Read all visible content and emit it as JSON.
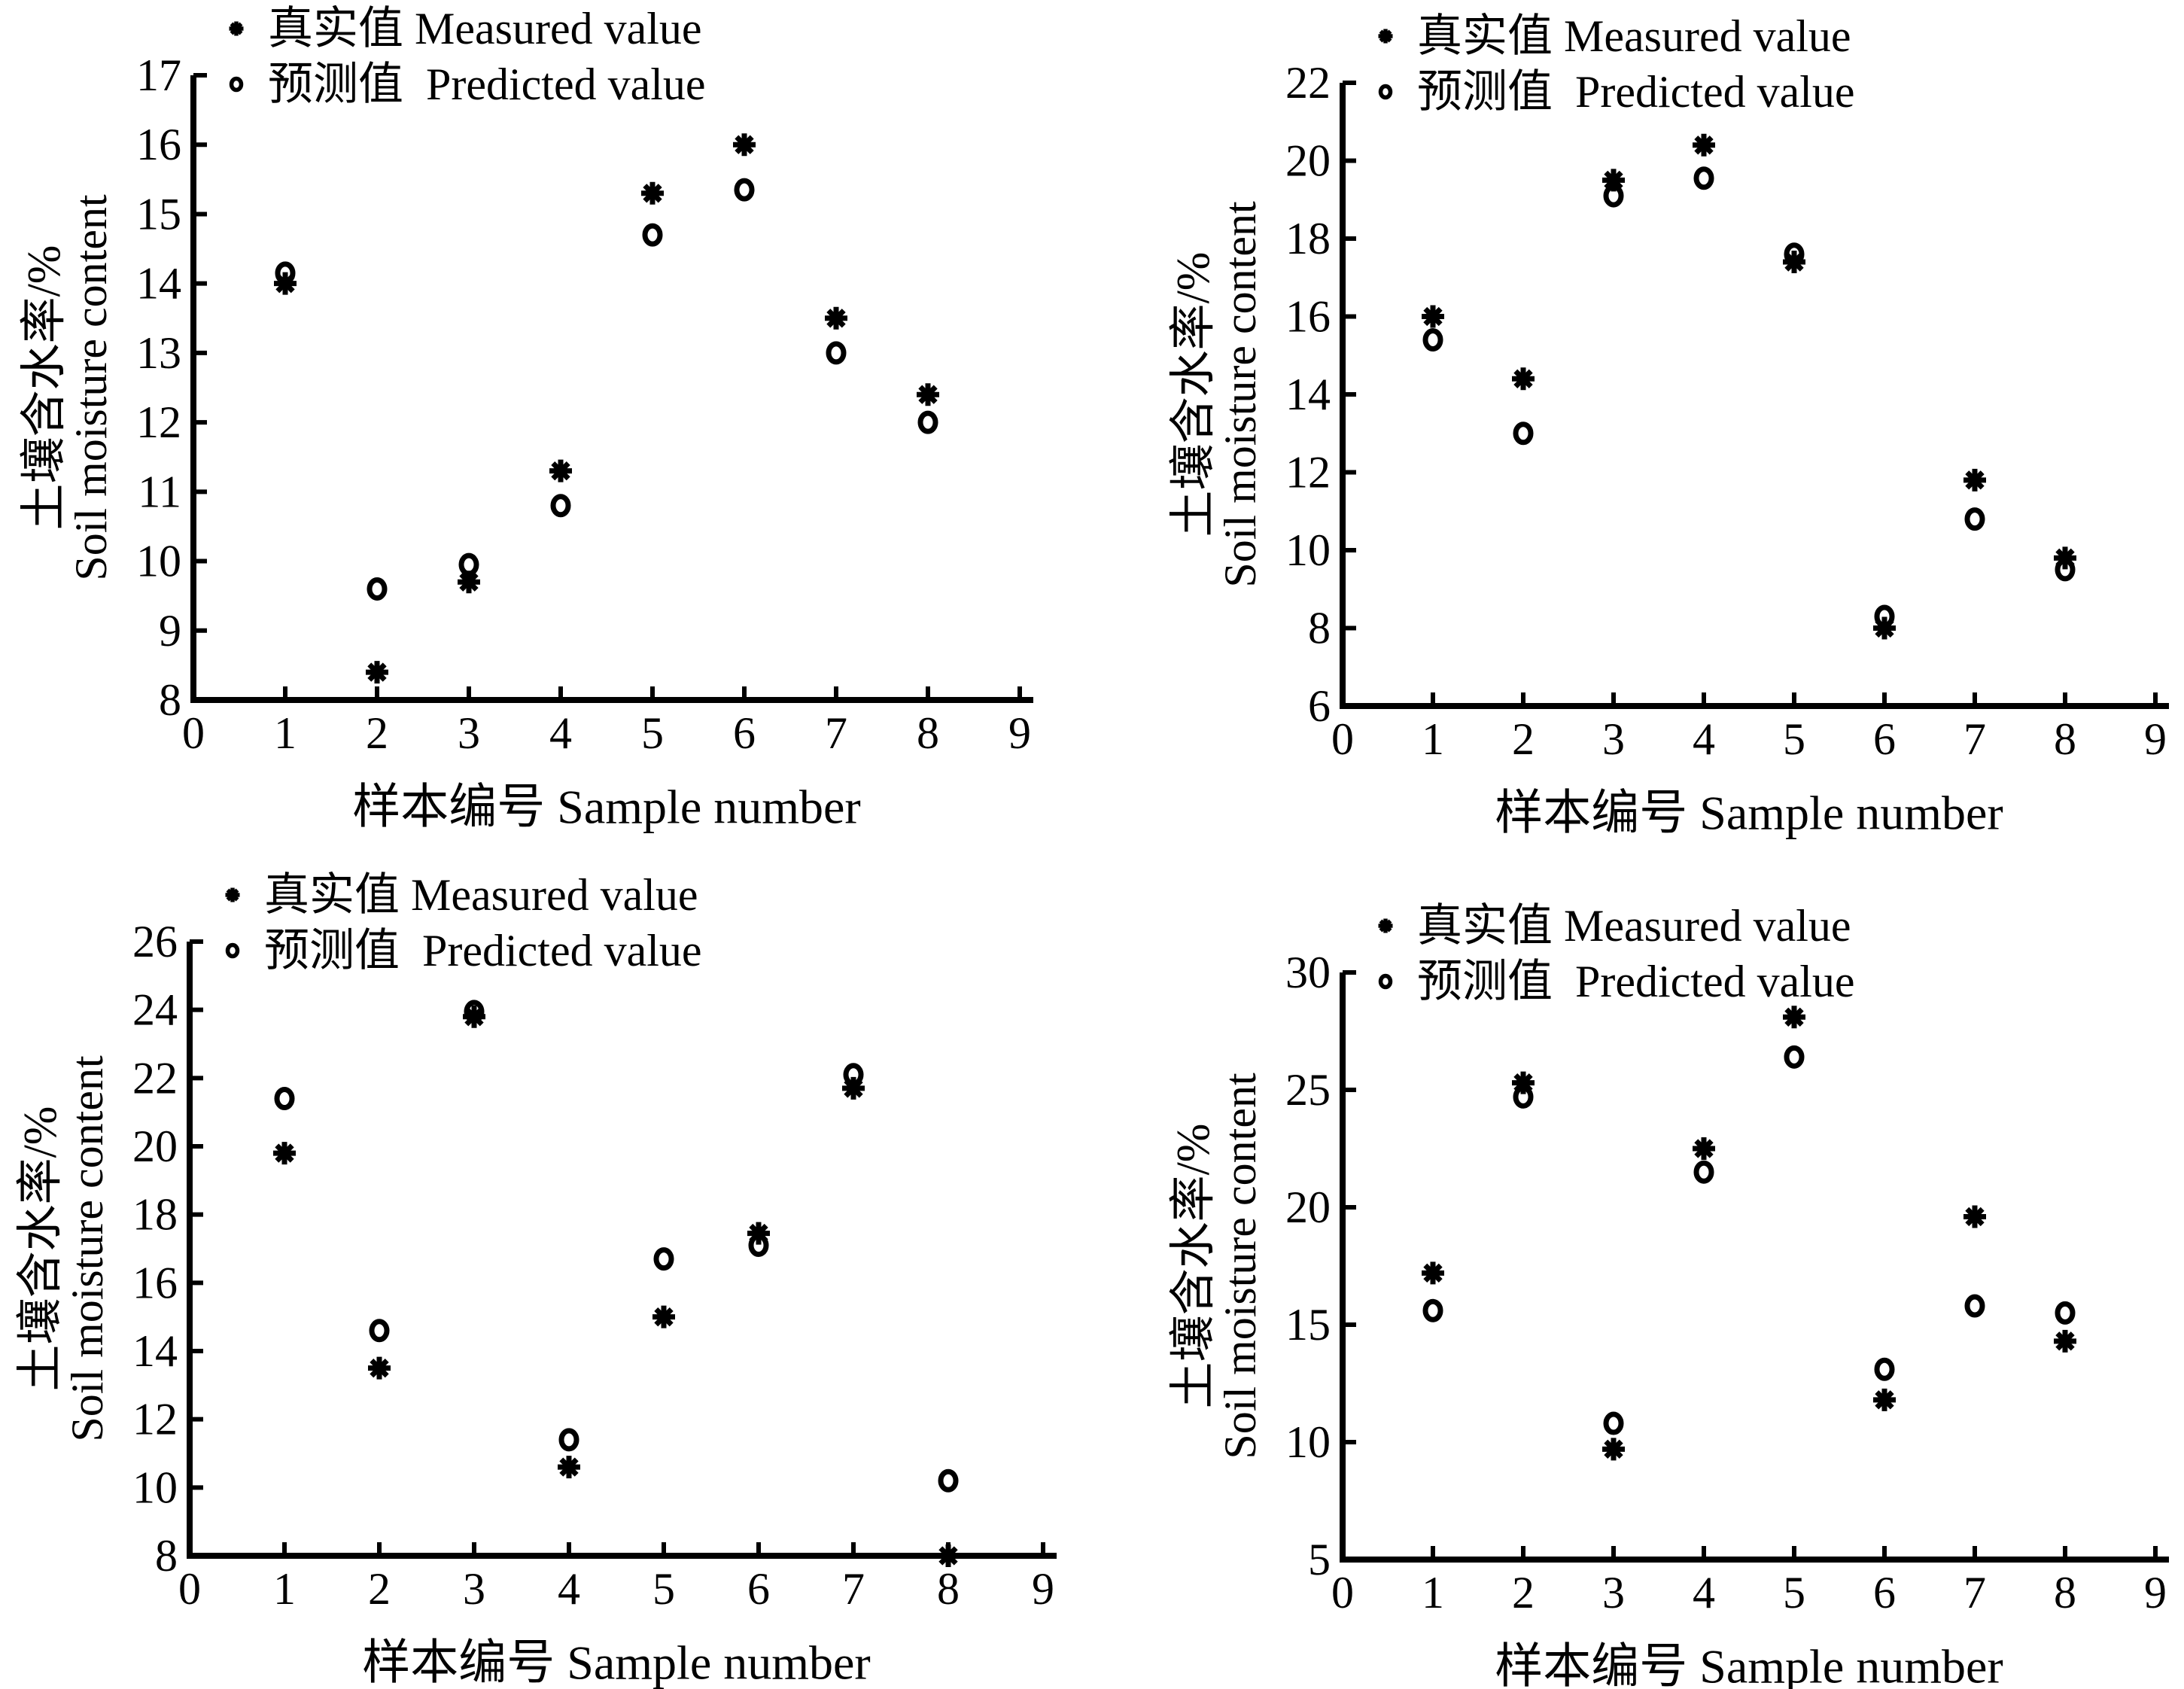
{
  "figure": {
    "background": "#ffffff",
    "ink": "#000000",
    "description": "Four scatter plots comparing measured vs predicted soil moisture content for 8 samples"
  },
  "chart_data": [
    {
      "type": "scatter",
      "position": "top-left",
      "xlabel": "样本编号 Sample number",
      "ylabel_zh": "土壤含水率/%",
      "ylabel_en": "Soil moisture content",
      "xlim": [
        0,
        9
      ],
      "ylim": [
        8,
        17
      ],
      "xticks": [
        0,
        1,
        2,
        3,
        4,
        5,
        6,
        7,
        8,
        9
      ],
      "yticks": [
        8,
        9,
        10,
        11,
        12,
        13,
        14,
        15,
        16,
        17
      ],
      "grid": false,
      "legend_position": "top-left",
      "legend": [
        "真实值 Measured value",
        "预测值  Predicted value"
      ],
      "x": [
        1,
        2,
        3,
        4,
        5,
        6,
        7,
        8
      ],
      "series": [
        {
          "name": "真实值 Measured value",
          "marker": "asterisk",
          "values": [
            14.0,
            8.4,
            9.7,
            11.3,
            15.3,
            16.0,
            13.5,
            12.4
          ]
        },
        {
          "name": "预测值 Predicted value",
          "marker": "circle",
          "values": [
            14.15,
            9.6,
            9.95,
            10.8,
            14.7,
            15.35,
            13.0,
            12.0
          ]
        }
      ]
    },
    {
      "type": "scatter",
      "position": "top-right",
      "xlabel": "样本编号 Sample number",
      "ylabel_zh": "土壤含水率/%",
      "ylabel_en": "Soil moisture content",
      "xlim": [
        0,
        9
      ],
      "ylim": [
        6,
        22
      ],
      "xticks": [
        0,
        1,
        2,
        3,
        4,
        5,
        6,
        7,
        8,
        9
      ],
      "yticks": [
        6,
        8,
        10,
        12,
        14,
        16,
        18,
        20,
        22
      ],
      "grid": false,
      "legend_position": "top-left",
      "legend": [
        "真实值 Measured value",
        "预测值  Predicted value"
      ],
      "x": [
        1,
        2,
        3,
        4,
        5,
        6,
        7,
        8
      ],
      "series": [
        {
          "name": "真实值 Measured value",
          "marker": "asterisk",
          "values": [
            16.0,
            14.4,
            19.5,
            20.4,
            17.4,
            8.0,
            11.8,
            9.8
          ]
        },
        {
          "name": "预测值 Predicted value",
          "marker": "circle",
          "values": [
            15.4,
            13.0,
            19.1,
            19.55,
            17.6,
            8.3,
            10.8,
            9.5
          ]
        }
      ]
    },
    {
      "type": "scatter",
      "position": "bottom-left",
      "xlabel": "样本编号 Sample number",
      "ylabel_zh": "土壤含水率/%",
      "ylabel_en": "Soil moisture content",
      "xlim": [
        0,
        9
      ],
      "ylim": [
        8,
        26
      ],
      "xticks": [
        0,
        1,
        2,
        3,
        4,
        5,
        6,
        7,
        8,
        9
      ],
      "yticks": [
        8,
        10,
        12,
        14,
        16,
        18,
        20,
        22,
        24,
        26
      ],
      "grid": false,
      "legend_position": "top-left",
      "legend": [
        "真实值 Measured value",
        "预测值  Predicted value"
      ],
      "x": [
        1,
        2,
        3,
        4,
        5,
        6,
        7,
        8
      ],
      "series": [
        {
          "name": "真实值 Measured value",
          "marker": "asterisk",
          "values": [
            19.8,
            13.5,
            23.8,
            10.6,
            15.0,
            17.45,
            21.7,
            8.0
          ]
        },
        {
          "name": "预测值 Predicted value",
          "marker": "circle",
          "values": [
            21.4,
            14.6,
            23.95,
            11.4,
            16.7,
            17.1,
            22.1,
            10.2
          ]
        }
      ]
    },
    {
      "type": "scatter",
      "position": "bottom-right",
      "xlabel": "样本编号 Sample number",
      "ylabel_zh": "土壤含水率/%",
      "ylabel_en": "Soil moisture content",
      "xlim": [
        0,
        9
      ],
      "ylim": [
        5,
        30
      ],
      "xticks": [
        0,
        1,
        2,
        3,
        4,
        5,
        6,
        7,
        8,
        9
      ],
      "yticks": [
        5,
        10,
        15,
        20,
        25,
        30
      ],
      "grid": false,
      "legend_position": "top-left",
      "legend": [
        "真实值 Measured value",
        "预测值  Predicted value"
      ],
      "x": [
        1,
        2,
        3,
        4,
        5,
        6,
        7,
        8
      ],
      "series": [
        {
          "name": "真实值 Measured value",
          "marker": "asterisk",
          "values": [
            17.2,
            25.3,
            9.7,
            22.5,
            28.1,
            11.8,
            19.6,
            14.3
          ]
        },
        {
          "name": "预测值 Predicted value",
          "marker": "circle",
          "values": [
            15.6,
            24.7,
            10.8,
            21.5,
            26.4,
            13.1,
            15.8,
            15.5
          ]
        }
      ]
    }
  ]
}
